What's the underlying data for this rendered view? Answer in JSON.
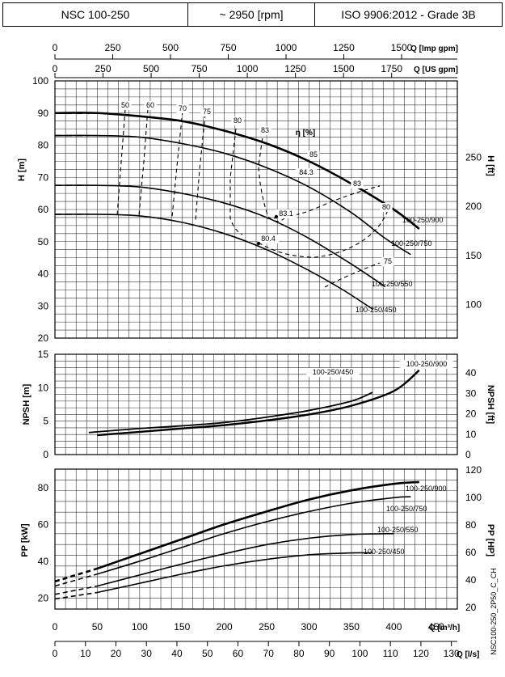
{
  "header": {
    "model": "NSC 100-250",
    "speed": "~ 2950 [rpm]",
    "standard": "ISO 9906:2012 - Grade 3B"
  },
  "axes": {
    "q_imp_gpm_label": "Q [Imp gpm]",
    "q_imp_gpm_ticks": [
      "0",
      "250",
      "500",
      "750",
      "1000",
      "1250",
      "1500"
    ],
    "q_us_gpm_label": "Q [US gpm]",
    "q_us_gpm_ticks": [
      "0",
      "250",
      "500",
      "750",
      "1000",
      "1250",
      "1500",
      "1750"
    ],
    "q_m3h_label": "Q [m³/h]",
    "q_m3h_ticks": [
      "0",
      "50",
      "100",
      "150",
      "200",
      "250",
      "300",
      "350",
      "400",
      "450"
    ],
    "q_ls_label": "Q [l/s]",
    "q_ls_ticks": [
      "0",
      "10",
      "20",
      "30",
      "40",
      "50",
      "60",
      "70",
      "80",
      "90",
      "100",
      "110",
      "120",
      "130"
    ],
    "h_m_label": "H [m]",
    "h_m_ticks": [
      "20",
      "30",
      "40",
      "50",
      "60",
      "70",
      "80",
      "90",
      "100"
    ],
    "h_ft_label": "H [ft]",
    "h_ft_ticks": [
      "100",
      "150",
      "200",
      "250"
    ],
    "npsh_m_label": "NPSH [m]",
    "npsh_m_ticks": [
      "0",
      "5",
      "10",
      "15"
    ],
    "npsh_ft_label": "NPSH [ft]",
    "npsh_ft_ticks": [
      "0",
      "10",
      "20",
      "30",
      "40"
    ],
    "p_kw_label": "PP [kW]",
    "p_kw_ticks": [
      "20",
      "40",
      "60",
      "80"
    ],
    "p_hp_label": "PP [HP]",
    "p_hp_ticks": [
      "20",
      "40",
      "60",
      "80",
      "100",
      "120"
    ],
    "eta_label": "η [%]"
  },
  "footer_code": "NSC100-250_2P50_C_CH",
  "chart_data": [
    {
      "type": "line",
      "title": "",
      "xlabel": "Q [m³/h]",
      "ylabel": "H [m]",
      "xlim": [
        0,
        475
      ],
      "ylim": [
        20,
        100
      ],
      "series": [
        {
          "name": "100-250/900",
          "x": [
            0,
            50,
            100,
            150,
            200,
            250,
            300,
            350,
            400,
            430
          ],
          "y": [
            90,
            90,
            89,
            87.5,
            84.5,
            80.5,
            75,
            68,
            60,
            54
          ]
        },
        {
          "name": "100-250/750",
          "x": [
            0,
            50,
            100,
            150,
            200,
            250,
            300,
            350,
            390,
            420
          ],
          "y": [
            83,
            83,
            82.5,
            80.5,
            77.5,
            73,
            67,
            59,
            51,
            46
          ]
        },
        {
          "name": "100-250/550",
          "x": [
            0,
            50,
            100,
            150,
            200,
            250,
            300,
            350,
            390
          ],
          "y": [
            67.5,
            67.5,
            67,
            65,
            62,
            57.5,
            51,
            43,
            36
          ]
        },
        {
          "name": "100-250/450",
          "x": [
            0,
            50,
            100,
            150,
            200,
            250,
            300,
            340,
            375
          ],
          "y": [
            58.5,
            58.5,
            58,
            56,
            52.5,
            47.5,
            41,
            35,
            29
          ]
        }
      ],
      "efficiency_labels": [
        "50",
        "60",
        "70",
        "75",
        "80",
        "83",
        "85",
        "84.3",
        "83",
        "80",
        "83.1",
        "80.4",
        "75"
      ]
    },
    {
      "type": "line",
      "title": "",
      "xlabel": "Q [m³/h]",
      "ylabel": "NPSH [m]",
      "xlim": [
        0,
        475
      ],
      "ylim": [
        0,
        15
      ],
      "series": [
        {
          "name": "100-250/900",
          "x": [
            50,
            100,
            150,
            200,
            250,
            300,
            350,
            400,
            430
          ],
          "y": [
            2.9,
            3.4,
            3.9,
            4.4,
            5.1,
            6.0,
            7.3,
            9.5,
            12.6
          ]
        },
        {
          "name": "100-250/450",
          "x": [
            40,
            100,
            150,
            200,
            250,
            300,
            350,
            375
          ],
          "y": [
            3.3,
            3.9,
            4.3,
            4.8,
            5.6,
            6.6,
            8.0,
            9.3
          ]
        }
      ]
    },
    {
      "type": "line",
      "title": "",
      "xlabel": "Q [m³/h]",
      "ylabel": "PP [kW]",
      "xlim": [
        0,
        475
      ],
      "ylim": [
        14,
        90
      ],
      "series": [
        {
          "name": "100-250/900",
          "x": [
            0,
            50,
            100,
            150,
            200,
            250,
            300,
            350,
            400,
            430
          ],
          "y": [
            29,
            36,
            44,
            52,
            60,
            67,
            73.5,
            78.5,
            82,
            83
          ]
        },
        {
          "name": "100-250/750",
          "x": [
            0,
            50,
            100,
            150,
            200,
            250,
            300,
            350,
            400,
            420
          ],
          "y": [
            26.5,
            33,
            40,
            47.5,
            55,
            61.5,
            67,
            71.5,
            74.5,
            75
          ]
        },
        {
          "name": "100-250/550",
          "x": [
            0,
            50,
            100,
            150,
            200,
            250,
            300,
            350,
            400
          ],
          "y": [
            22,
            26.5,
            32.5,
            38.5,
            44,
            49,
            52.5,
            54.5,
            55
          ]
        },
        {
          "name": "100-250/450",
          "x": [
            0,
            50,
            100,
            150,
            200,
            250,
            300,
            350,
            375
          ],
          "y": [
            19.5,
            23,
            28,
            33,
            37.5,
            41,
            43.5,
            44.5,
            44.5
          ]
        }
      ]
    }
  ]
}
